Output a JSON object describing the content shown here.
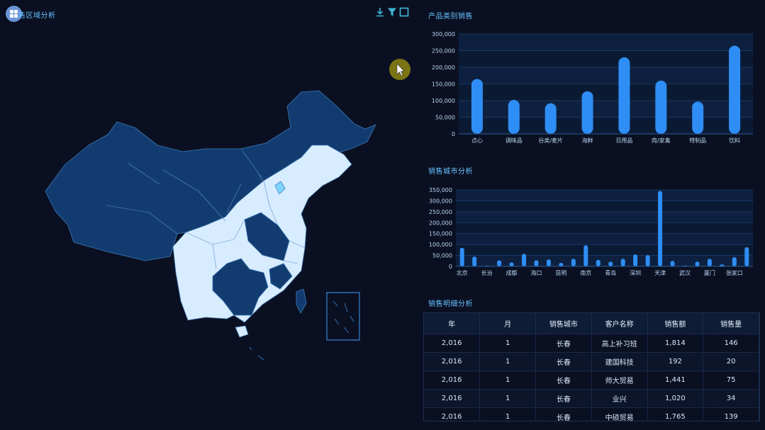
{
  "map_panel": {
    "title": "售区域分析",
    "icons": [
      "grid-icon",
      "download-icon",
      "filter-icon",
      "maximize-icon"
    ]
  },
  "category_chart": {
    "section_title": "产品类别销售"
  },
  "city_chart": {
    "section_title": "销售城市分析"
  },
  "table_panel": {
    "section_title": "销售明细分析",
    "columns": [
      "年",
      "月",
      "销售城市",
      "客户名称",
      "销售额",
      "销售量"
    ],
    "rows": [
      [
        "2,016",
        "1",
        "长春",
        "高上补习班",
        "1,814",
        "146"
      ],
      [
        "2,016",
        "1",
        "长春",
        "建国科技",
        "192",
        "20"
      ],
      [
        "2,016",
        "1",
        "长春",
        "师大贸易",
        "1,441",
        "75"
      ],
      [
        "2,016",
        "1",
        "长春",
        "业兴",
        "1,020",
        "34"
      ],
      [
        "2,016",
        "1",
        "长春",
        "中硕贸易",
        "1,765",
        "139"
      ]
    ]
  },
  "colors": {
    "background": "#0a1022",
    "bar": "#2f8ef5",
    "map_dark": "#123c70",
    "map_light": "#d7ecff",
    "title": "#69c3ff"
  },
  "chart_data": [
    {
      "type": "bar",
      "categories": [
        "点心",
        "调味品",
        "谷类/麦片",
        "海鲜",
        "日用品",
        "肉/家禽",
        "特制品",
        "饮料"
      ],
      "values": [
        165000,
        102000,
        92000,
        128000,
        230000,
        160000,
        97000,
        265000
      ],
      "ylim": [
        0,
        300000
      ],
      "yticks": [
        "0",
        "50,000",
        "100,000",
        "150,000",
        "200,000",
        "250,000",
        "300,000"
      ],
      "grid": true
    },
    {
      "type": "bar",
      "categories": [
        "北京",
        "",
        "长治",
        "",
        "成都",
        "",
        "海口",
        "",
        "昆明",
        "",
        "南京",
        "",
        "青岛",
        "",
        "深圳",
        "",
        "天津",
        "",
        "武汉",
        "",
        "厦门",
        "",
        "张家口",
        ""
      ],
      "values": [
        85000,
        45000,
        3000,
        28000,
        18000,
        58000,
        28000,
        32000,
        16000,
        35000,
        97000,
        30000,
        22000,
        35000,
        55000,
        52000,
        345000,
        25000,
        3000,
        22000,
        35000,
        8000,
        42000,
        88000
      ],
      "ylim": [
        0,
        350000
      ],
      "yticks": [
        "0",
        "50,000",
        "100,000",
        "150,000",
        "200,000",
        "250,000",
        "300,000",
        "350,000"
      ],
      "grid": true
    }
  ]
}
